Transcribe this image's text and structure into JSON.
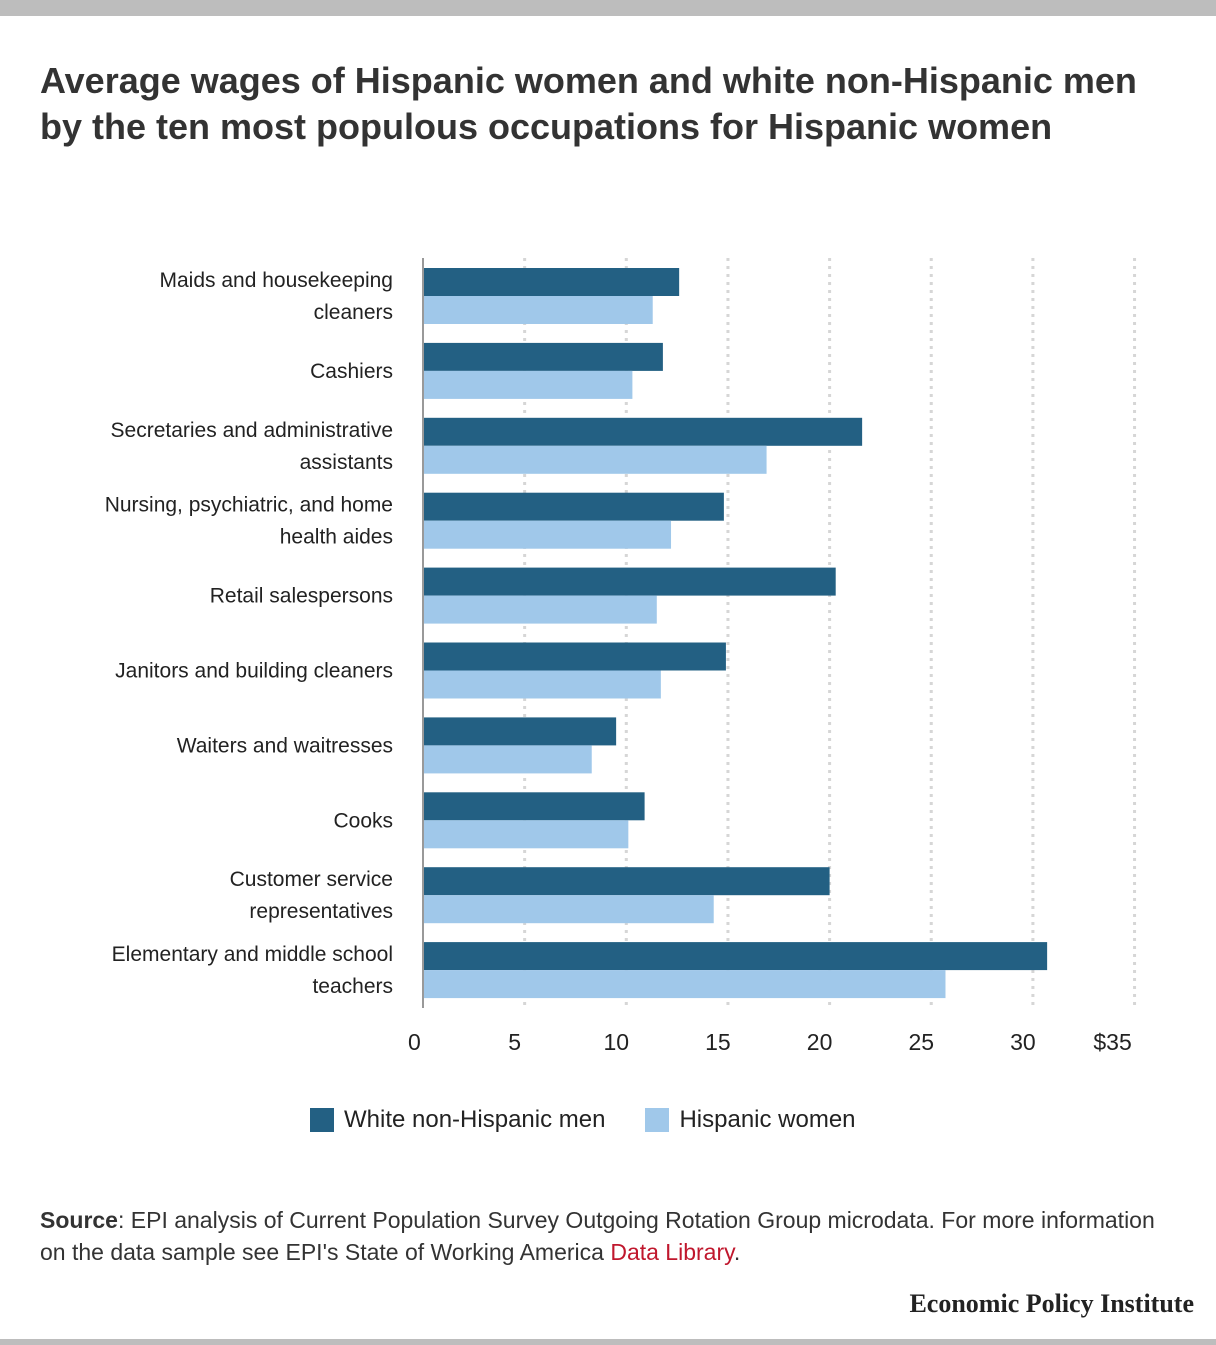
{
  "title": "Average wages of Hispanic women and white non-Hispanic men by the ten most populous occupations for Hispanic women",
  "colors": {
    "men": "#236083",
    "women": "#a0c8ea",
    "grid": "#d6d6d6",
    "axis": "#999999"
  },
  "chart_data": {
    "type": "bar",
    "orientation": "horizontal",
    "categories": [
      [
        "Maids and housekeeping",
        "cleaners"
      ],
      [
        "Cashiers"
      ],
      [
        "Secretaries and administrative",
        "assistants"
      ],
      [
        "Nursing, psychiatric, and home",
        "health aides"
      ],
      [
        "Retail salespersons"
      ],
      [
        "Janitors and building cleaners"
      ],
      [
        "Waiters and waitresses"
      ],
      [
        "Cooks"
      ],
      [
        "Customer service",
        "representatives"
      ],
      [
        "Elementary and middle school",
        "teachers"
      ]
    ],
    "series": [
      {
        "name": "White non-Hispanic men",
        "values": [
          12.6,
          11.8,
          21.6,
          14.8,
          20.3,
          14.9,
          9.5,
          10.9,
          20.0,
          30.7
        ]
      },
      {
        "name": "Hispanic women",
        "values": [
          11.3,
          10.3,
          16.9,
          12.2,
          11.5,
          11.7,
          8.3,
          10.1,
          14.3,
          25.7
        ]
      }
    ],
    "xlim": [
      0,
      35
    ],
    "xticks": [
      0,
      5,
      10,
      15,
      20,
      25,
      30,
      35
    ],
    "xtick_labels": [
      "0",
      "5",
      "10",
      "15",
      "20",
      "25",
      "30",
      "$35"
    ],
    "grid": "vertical-dotted",
    "legend_position": "bottom"
  },
  "legend": {
    "men_label": "White non-Hispanic men",
    "women_label": "Hispanic women"
  },
  "source": {
    "label": "Source",
    "text": ": EPI analysis of Current Population Survey Outgoing Rotation Group microdata. For more information on the data sample see EPI's State of Working America ",
    "link": "Data Library",
    "end": "."
  },
  "brand": "Economic Policy Institute"
}
